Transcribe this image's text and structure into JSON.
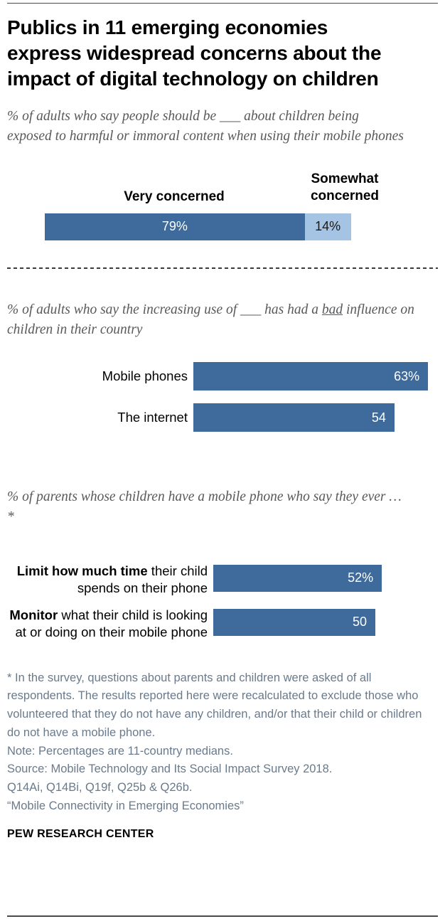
{
  "header": {
    "title": "Publics in 11 emerging economies express widespread concerns about the impact of digital technology on children",
    "title_lines": [
      "Publics in 11 emerging economies",
      "express widespread concerns about the",
      "impact of digital technology on children"
    ]
  },
  "chart_data": [
    {
      "type": "bar",
      "subtype": "stacked-horizontal",
      "title": "% of adults who say people should be ___ about children being exposed to harmful or immoral content when using their mobile phones",
      "series": [
        {
          "name": "Very concerned",
          "value": 79,
          "value_label": "79%",
          "color": "#3e6b9b",
          "text_color": "#ffffff"
        },
        {
          "name": "Somewhat concerned",
          "value": 14,
          "value_label": "14%",
          "color": "#a5c3e3",
          "text_color": "#1a1a1a"
        }
      ],
      "xlim": [
        0,
        100
      ],
      "grid": false,
      "legend_position": "above-segments"
    },
    {
      "type": "bar",
      "orientation": "horizontal",
      "title_parts": {
        "before": "% of adults who say the increasing use of ___ has had a ",
        "underlined": "bad",
        "after": " influence on children in their country"
      },
      "categories": [
        "Mobile phones",
        "The internet"
      ],
      "values": [
        63,
        54
      ],
      "value_labels": [
        "63%",
        "54"
      ],
      "bar_color": "#3e6b9b",
      "xlim": [
        0,
        70
      ],
      "grid": false
    },
    {
      "type": "bar",
      "orientation": "horizontal",
      "title": "% of parents whose children have a mobile phone who say they ever …*",
      "categories": [
        {
          "bold": "Limit how much time",
          "rest": " their child spends on their phone",
          "full": "Limit how much time their child spends on their phone"
        },
        {
          "bold": "Monitor",
          "rest": " what their child is looking at or doing on their mobile phone",
          "full": "Monitor what their child is looking at or doing on their mobile phone"
        }
      ],
      "values": [
        52,
        50
      ],
      "value_labels": [
        "52%",
        "50"
      ],
      "bar_color": "#3e6b9b",
      "xlim": [
        0,
        70
      ],
      "grid": false
    }
  ],
  "footer": {
    "footnote": "* In the survey, questions about parents and children were asked of all respondents. The results reported here were recalculated to exclude those who volunteered that they do not have any children, and/or that their child or children do not have a mobile phone.",
    "note": "Note: Percentages are 11-country medians.",
    "source_lines": [
      "Source: Mobile Technology and Its Social Impact Survey 2018.",
      "Q14Ai, Q14Bi, Q19f, Q25b & Q26b."
    ],
    "report_title": "“Mobile Connectivity in Emerging Economies”",
    "brand": "PEW RESEARCH CENTER"
  },
  "colors": {
    "bar_dark_blue": "#3e6b9b",
    "bar_light_blue": "#a5c3e3",
    "question_gray": "#58595b",
    "footnote_slate": "#697a8c"
  }
}
